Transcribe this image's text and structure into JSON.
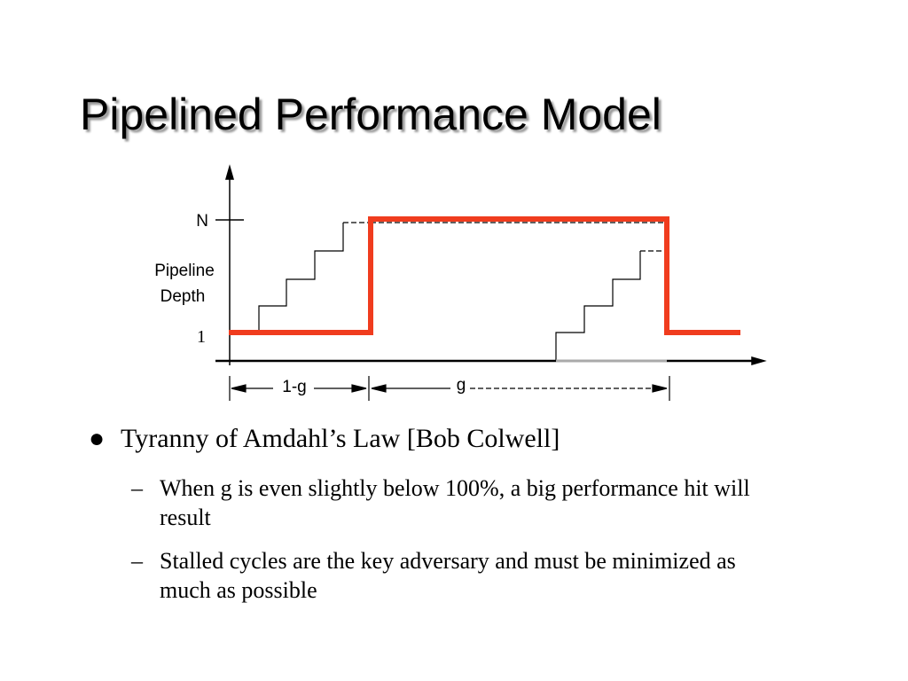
{
  "title": "Pipelined Performance Model",
  "diagram": {
    "y_label_top": "N",
    "axis_label": [
      "Pipeline",
      "Depth"
    ],
    "y_label_bottom": "1",
    "span_left": "1-g",
    "span_right": "g"
  },
  "bullets": [
    {
      "text": "Tyranny of Amdahl’s Law [Bob Colwell]",
      "subitems": [
        "When g is even slightly below 100%, a big performance hit will result",
        "Stalled cycles are the key adversary and must be minimized as much as possible"
      ]
    }
  ]
}
